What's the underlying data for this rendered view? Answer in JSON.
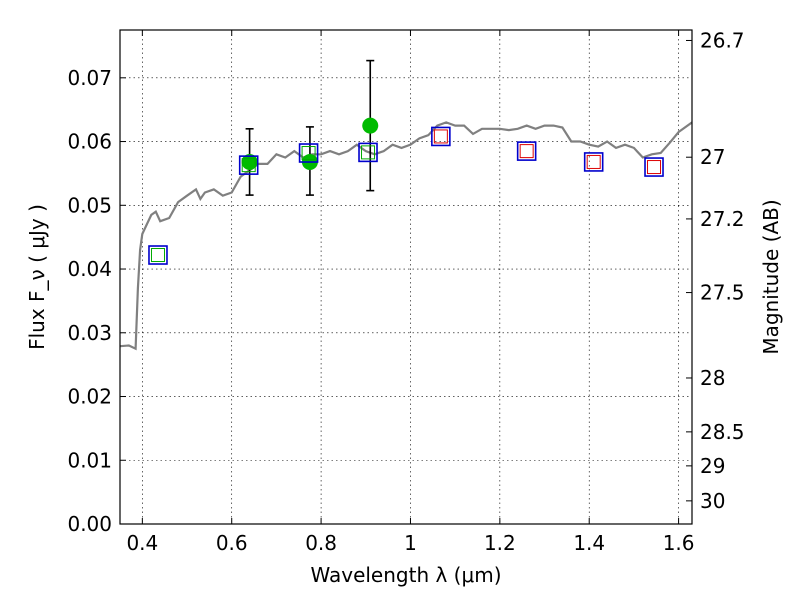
{
  "chart_data": {
    "type": "scatter",
    "title": "",
    "xlabel": "Wavelength  λ (μm)",
    "ylabel": "Flux  F_ν  ( μJy )",
    "ylabel_right": "Magnitude (AB)",
    "xlim": [
      0.35,
      1.63
    ],
    "ylim": [
      0.0,
      0.0775
    ],
    "grid": true,
    "x_ticks": [
      0.4,
      0.6,
      0.8,
      1.0,
      1.2,
      1.4,
      1.6
    ],
    "x_tick_labels": [
      "0.4",
      "0.6",
      "0.8",
      "1",
      "1.2",
      "1.4",
      "1.6"
    ],
    "y_ticks": [
      0.0,
      0.01,
      0.02,
      0.03,
      0.04,
      0.05,
      0.06,
      0.07
    ],
    "y_tick_labels": [
      "0.00",
      "0.01",
      "0.02",
      "0.03",
      "0.04",
      "0.05",
      "0.06",
      "0.07"
    ],
    "right_ticks": [
      {
        "mag": 26.7,
        "label": "26.7"
      },
      {
        "mag": 27.0,
        "label": "27"
      },
      {
        "mag": 27.2,
        "label": "27.2"
      },
      {
        "mag": 27.5,
        "label": "27.5"
      },
      {
        "mag": 28.0,
        "label": "28"
      },
      {
        "mag": 28.5,
        "label": "28.5"
      },
      {
        "mag": 29.0,
        "label": "29"
      },
      {
        "mag": 30.0,
        "label": "30"
      }
    ],
    "colors": {
      "spectrum": "#808080",
      "observed": "#00bb00",
      "model_outer": "#0000cc",
      "model_inner_blue": "#00aa00",
      "model_inner_red": "#dd0000",
      "errorbar": "#000000"
    },
    "series": [
      {
        "kind": "spectrum",
        "x": [
          0.35,
          0.37,
          0.385,
          0.39,
          0.395,
          0.4,
          0.41,
          0.42,
          0.43,
          0.44,
          0.46,
          0.48,
          0.5,
          0.52,
          0.53,
          0.54,
          0.56,
          0.58,
          0.6,
          0.62,
          0.64,
          0.66,
          0.68,
          0.7,
          0.72,
          0.74,
          0.76,
          0.78,
          0.8,
          0.82,
          0.84,
          0.86,
          0.88,
          0.9,
          0.92,
          0.94,
          0.96,
          0.98,
          1.0,
          1.02,
          1.04,
          1.06,
          1.08,
          1.1,
          1.12,
          1.14,
          1.16,
          1.18,
          1.2,
          1.22,
          1.24,
          1.26,
          1.28,
          1.3,
          1.32,
          1.34,
          1.36,
          1.38,
          1.4,
          1.42,
          1.44,
          1.46,
          1.48,
          1.5,
          1.52,
          1.54,
          1.56,
          1.58,
          1.6,
          1.63
        ],
        "y": [
          0.0279,
          0.028,
          0.0275,
          0.037,
          0.043,
          0.0455,
          0.047,
          0.0485,
          0.049,
          0.0475,
          0.048,
          0.0505,
          0.0515,
          0.0525,
          0.051,
          0.052,
          0.0525,
          0.0515,
          0.052,
          0.0545,
          0.0555,
          0.0565,
          0.0565,
          0.058,
          0.0575,
          0.0585,
          0.0575,
          0.058,
          0.058,
          0.0585,
          0.058,
          0.0585,
          0.0595,
          0.0585,
          0.058,
          0.0585,
          0.0595,
          0.059,
          0.0595,
          0.0605,
          0.061,
          0.0625,
          0.063,
          0.0625,
          0.0625,
          0.0612,
          0.062,
          0.062,
          0.062,
          0.0618,
          0.062,
          0.0625,
          0.062,
          0.0625,
          0.0625,
          0.0622,
          0.06,
          0.06,
          0.0595,
          0.0592,
          0.06,
          0.059,
          0.0595,
          0.059,
          0.0575,
          0.058,
          0.0582,
          0.0598,
          0.0615,
          0.063
        ]
      },
      {
        "kind": "observed",
        "name": "",
        "x": [
          0.64,
          0.775,
          0.91
        ],
        "y": [
          0.0568,
          0.0568,
          0.0625
        ],
        "err_low": [
          0.0052,
          0.0052,
          0.0102
        ],
        "err_high": [
          0.0052,
          0.0055,
          0.0102
        ]
      },
      {
        "kind": "model_blue_green",
        "x": [
          0.435,
          0.638,
          0.772,
          0.905
        ],
        "y": [
          0.0422,
          0.0563,
          0.0582,
          0.0583
        ]
      },
      {
        "kind": "model_blue_red",
        "x": [
          1.068,
          1.26,
          1.41,
          1.545
        ],
        "y": [
          0.0608,
          0.0585,
          0.0568,
          0.056
        ]
      }
    ]
  }
}
